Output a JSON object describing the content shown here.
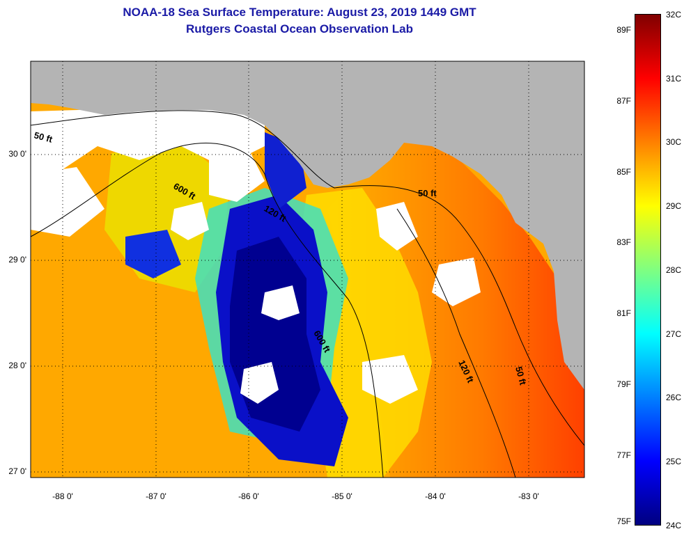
{
  "title": {
    "line1": "NOAA-18 Sea Surface Temperature:  August 23, 2019 1449 GMT",
    "line2": "Rutgers Coastal Ocean Observation Lab"
  },
  "axes": {
    "lat_labels": [
      "30 0'",
      "29 0'",
      "28 0'",
      "27 0'"
    ],
    "lon_labels": [
      "-88 0'",
      "-87 0'",
      "-86 0'",
      "-85 0'",
      "-84 0'",
      "-83 0'"
    ]
  },
  "contours": [
    "50 ft",
    "600 ft",
    "120 ft",
    "600 ft",
    "50 ft",
    "120 ft",
    "50 ft"
  ],
  "colorbar": {
    "fahrenheit": [
      "89F",
      "87F",
      "85F",
      "83F",
      "81F",
      "79F",
      "77F",
      "75F"
    ],
    "celsius": [
      "32C",
      "31C",
      "30C",
      "29C",
      "28C",
      "27C",
      "26C",
      "25C",
      "24C"
    ],
    "colors": [
      "#800000",
      "#ff0000",
      "#ff8000",
      "#ffff00",
      "#80ff80",
      "#00ffff",
      "#0080ff",
      "#0000ff",
      "#000080"
    ]
  },
  "map_colors": {
    "land": "#b4b4b4",
    "cloud": "#ffffff"
  }
}
